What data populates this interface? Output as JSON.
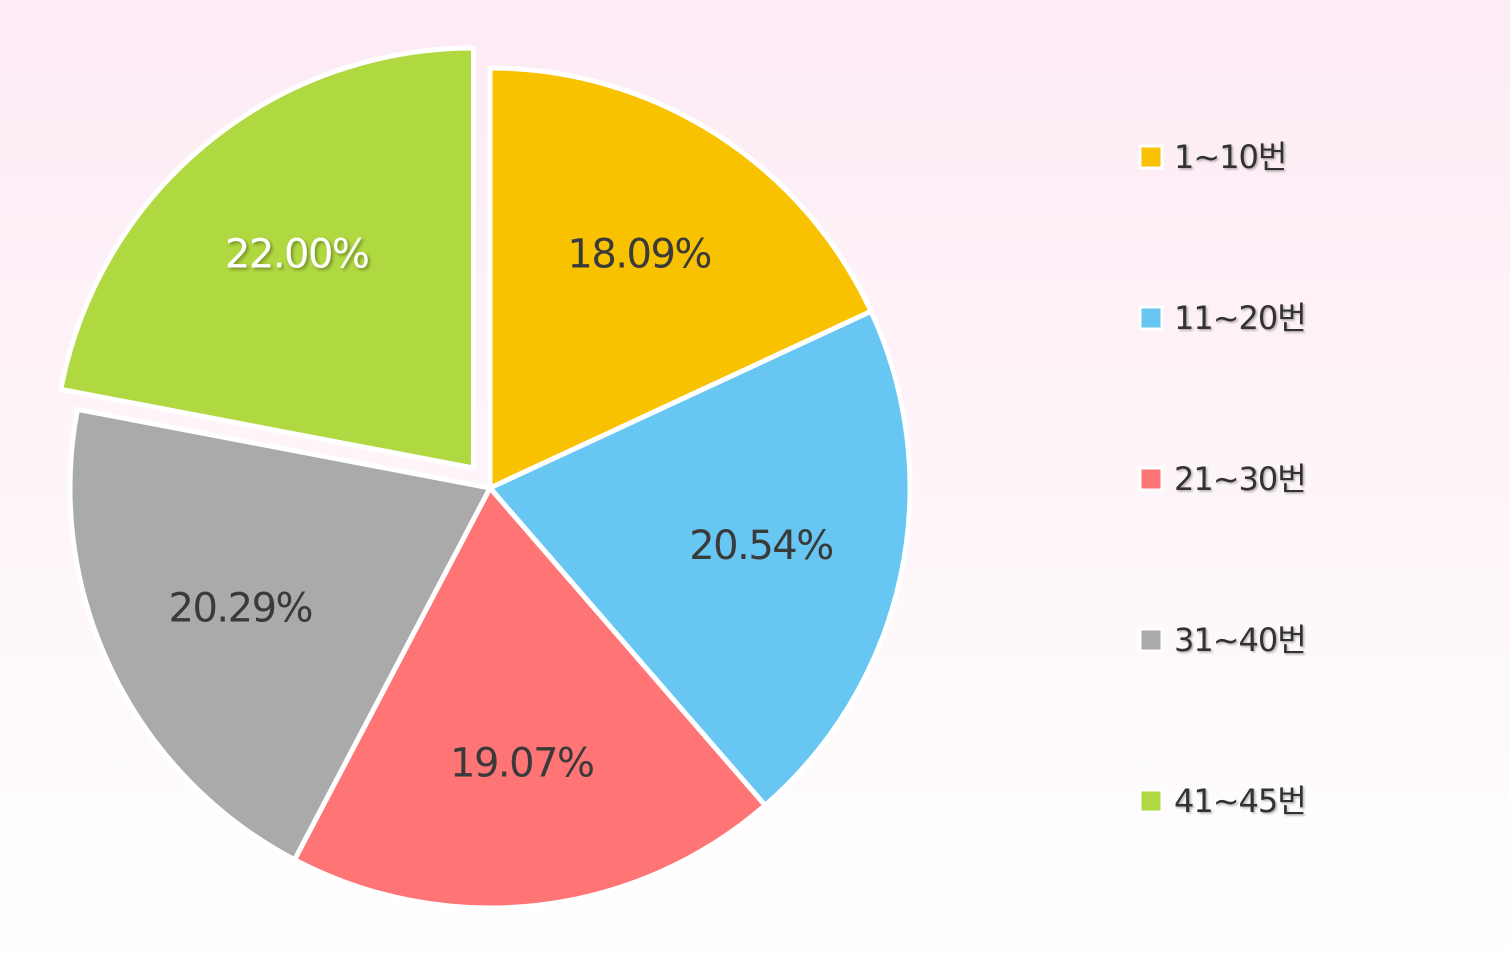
{
  "chart_data": {
    "type": "pie",
    "title": "",
    "unit": "%",
    "categories": [
      "1~10번",
      "11~20번",
      "21~30번",
      "31~40번",
      "41~45번"
    ],
    "values": [
      18.09,
      20.54,
      19.07,
      20.29,
      22.0
    ],
    "labels": [
      "18.09%",
      "20.54%",
      "19.07%",
      "20.29%",
      "22.00%"
    ],
    "colors": [
      "#f9c200",
      "#68c7f2",
      "#ff7474",
      "#aaaaaa",
      "#b0d840"
    ],
    "label_colors": [
      "#3a3a3a",
      "#3a3a3a",
      "#3a3a3a",
      "#3a3a3a",
      "#ffffff"
    ],
    "exploded": [
      false,
      false,
      false,
      false,
      true
    ],
    "start_angle_deg": 0,
    "direction": "clockwise",
    "legend": {
      "position": "right",
      "items": [
        "1~10번",
        "11~20번",
        "21~30번",
        "31~40번",
        "41~45번"
      ]
    }
  }
}
